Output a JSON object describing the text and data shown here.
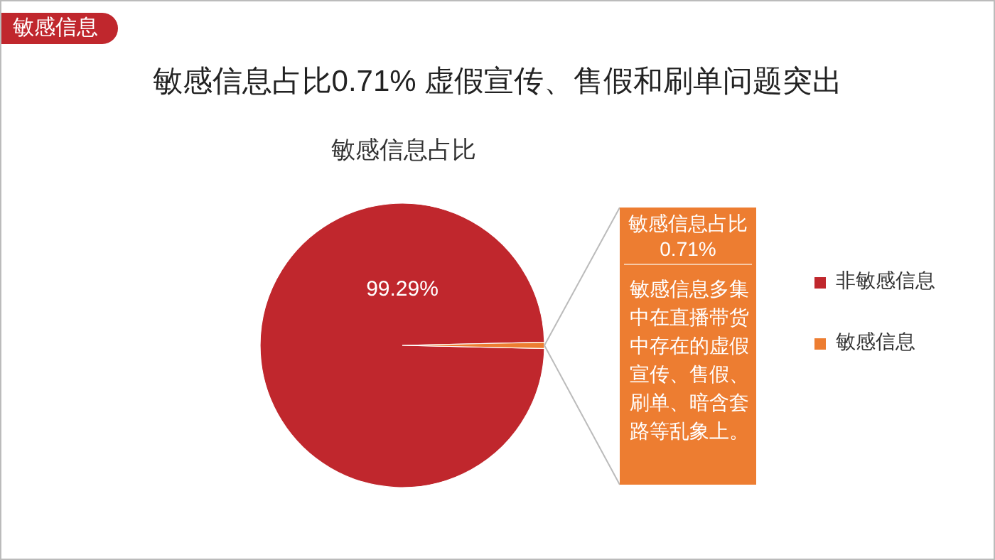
{
  "chart_data": {
    "type": "pie",
    "title": "敏感信息占比0.71% 虚假宣传、售假和刷单问题突出",
    "subtitle": "敏感信息占比",
    "categories": [
      "非敏感信息",
      "敏感信息"
    ],
    "values": [
      99.29,
      0.71
    ],
    "colors": [
      "#c0272d",
      "#ed7d31"
    ],
    "value_labels": [
      "99.29%",
      null
    ],
    "legend": "right",
    "annotations": [
      "敏感信息",
      "敏感信息占比\n0.71%",
      "敏感信息多集中在直播带货中存在的虚假宣传、售假、刷单、暗含套路等乱象上。"
    ]
  }
}
